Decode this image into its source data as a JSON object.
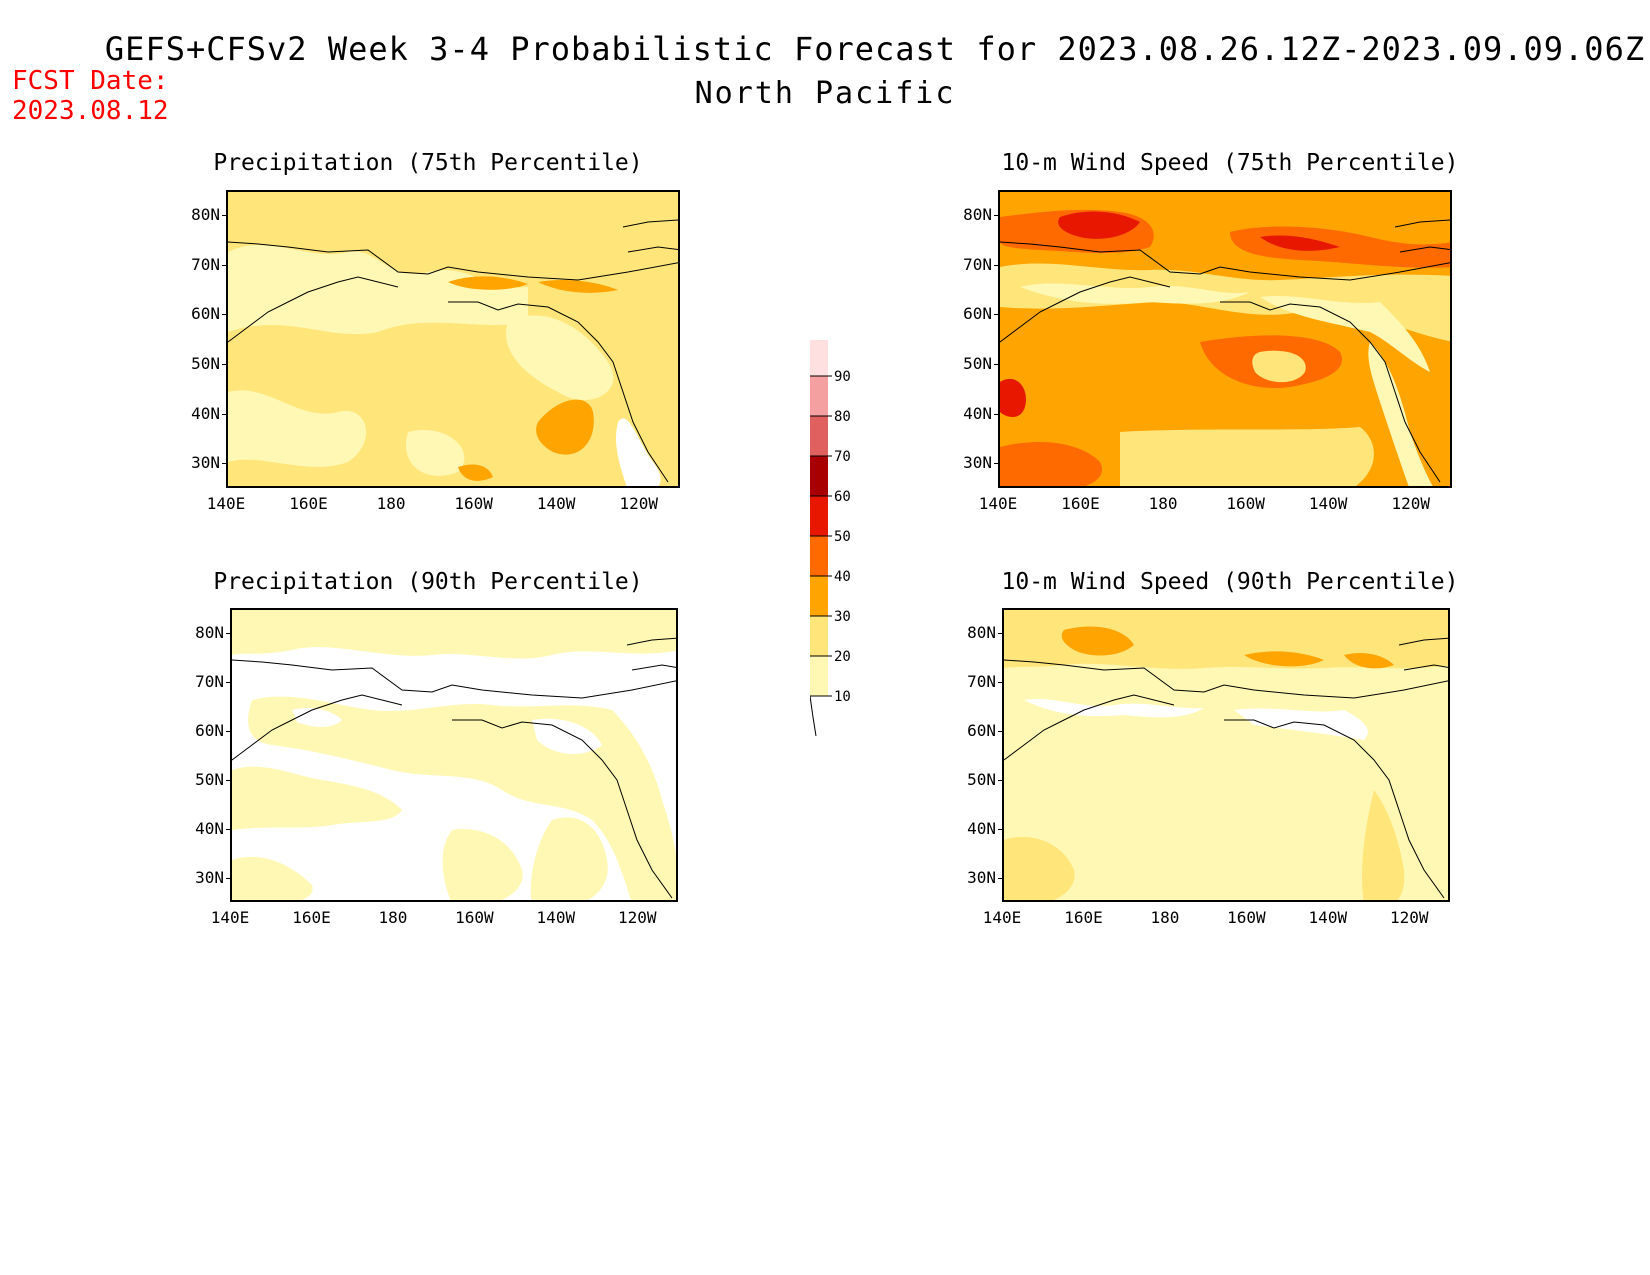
{
  "header": {
    "title": "GEFS+CFSv2 Week 3-4 Probabilistic Forecast for 2023.08.26.12Z-2023.09.09.06Z",
    "region": "North Pacific",
    "fcst_label": "FCST Date:",
    "fcst_date": "2023.08.12"
  },
  "axes": {
    "lat_labels": [
      "80N",
      "70N",
      "60N",
      "50N",
      "40N",
      "30N"
    ],
    "lon_labels": [
      "140E",
      "160E",
      "180",
      "160W",
      "140W",
      "120W"
    ]
  },
  "panels": [
    {
      "title": "Precipitation (75th Percentile)",
      "dominant_level": 20
    },
    {
      "title": "10-m Wind Speed (75th Percentile)",
      "dominant_level": 30
    },
    {
      "title": "Precipitation (90th Percentile)",
      "dominant_level": 10
    },
    {
      "title": "10-m Wind Speed (90th Percentile)",
      "dominant_level": 10
    }
  ],
  "colorbar": {
    "levels": [
      "10",
      "20",
      "30",
      "40",
      "50",
      "60",
      "70",
      "80",
      "90"
    ],
    "colors": [
      "#fff8b4",
      "#ffe57a",
      "#ffa400",
      "#ff6a00",
      "#e81800",
      "#a80000",
      "#e06060",
      "#f5a0a0",
      "#ffe0e0"
    ]
  }
}
